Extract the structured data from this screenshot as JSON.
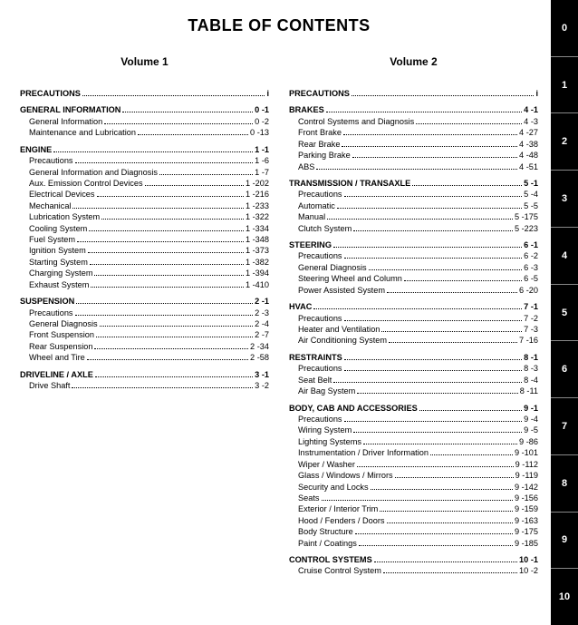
{
  "title": "TABLE OF CONTENTS",
  "vol1_label": "Volume 1",
  "vol2_label": "Volume 2",
  "side_tabs": [
    "0",
    "1",
    "2",
    "3",
    "4",
    "5",
    "6",
    "7",
    "8",
    "9",
    "10"
  ],
  "vol1": [
    {
      "head": {
        "label": "PRECAUTIONS",
        "page": "i"
      },
      "items": []
    },
    {
      "head": {
        "label": "GENERAL INFORMATION",
        "page": "0 -1"
      },
      "items": [
        {
          "label": "General Information",
          "page": "0 -2"
        },
        {
          "label": "Maintenance and Lubrication",
          "page": "0 -13"
        }
      ]
    },
    {
      "head": {
        "label": "ENGINE",
        "page": "1 -1"
      },
      "items": [
        {
          "label": "Precautions",
          "page": "1 -6"
        },
        {
          "label": "General Information and Diagnosis",
          "page": "1 -7"
        },
        {
          "label": "Aux. Emission Control Devices",
          "page": "1 -202"
        },
        {
          "label": "Electrical Devices",
          "page": "1 -216"
        },
        {
          "label": "Mechanical",
          "page": "1 -233"
        },
        {
          "label": "Lubrication System",
          "page": "1 -322"
        },
        {
          "label": "Cooling System",
          "page": "1 -334"
        },
        {
          "label": "Fuel System",
          "page": "1 -348"
        },
        {
          "label": "Ignition System",
          "page": "1 -373"
        },
        {
          "label": "Starting System",
          "page": "1 -382"
        },
        {
          "label": "Charging System",
          "page": "1 -394"
        },
        {
          "label": "Exhaust System",
          "page": "1 -410"
        }
      ]
    },
    {
      "head": {
        "label": "SUSPENSION",
        "page": "2 -1"
      },
      "items": [
        {
          "label": "Precautions",
          "page": "2 -3"
        },
        {
          "label": "General Diagnosis",
          "page": "2 -4"
        },
        {
          "label": "Front Suspension",
          "page": "2 -7"
        },
        {
          "label": "Rear Suspension",
          "page": "2 -34"
        },
        {
          "label": "Wheel and Tire",
          "page": "2 -58"
        }
      ]
    },
    {
      "head": {
        "label": "DRIVELINE / AXLE",
        "page": "3 -1"
      },
      "items": [
        {
          "label": "Drive Shaft",
          "page": "3 -2"
        }
      ]
    }
  ],
  "vol2": [
    {
      "head": {
        "label": "PRECAUTIONS",
        "page": "i"
      },
      "items": []
    },
    {
      "head": {
        "label": "BRAKES",
        "page": "4 -1"
      },
      "items": [
        {
          "label": "Control Systems and Diagnosis",
          "page": "4 -3"
        },
        {
          "label": "Front Brake",
          "page": "4 -27"
        },
        {
          "label": "Rear Brake",
          "page": "4 -38"
        },
        {
          "label": "Parking Brake",
          "page": "4 -48"
        },
        {
          "label": "ABS",
          "page": "4 -51"
        }
      ]
    },
    {
      "head": {
        "label": "TRANSMISSION / TRANSAXLE",
        "page": "5 -1"
      },
      "items": [
        {
          "label": "Precautions",
          "page": "5 -4"
        },
        {
          "label": "Automatic",
          "page": "5 -5"
        },
        {
          "label": "Manual",
          "page": "5 -175"
        },
        {
          "label": "Clutch System",
          "page": "5 -223"
        }
      ]
    },
    {
      "head": {
        "label": "STEERING",
        "page": "6 -1"
      },
      "items": [
        {
          "label": "Precautions",
          "page": "6 -2"
        },
        {
          "label": "General Diagnosis",
          "page": "6 -3"
        },
        {
          "label": "Steering Wheel and Column",
          "page": "6 -5"
        },
        {
          "label": "Power Assisted System",
          "page": "6 -20"
        }
      ]
    },
    {
      "head": {
        "label": "HVAC",
        "page": "7 -1"
      },
      "items": [
        {
          "label": "Precautions",
          "page": "7 -2"
        },
        {
          "label": "Heater and Ventilation",
          "page": "7 -3"
        },
        {
          "label": "Air Conditioning System",
          "page": "7 -16"
        }
      ]
    },
    {
      "head": {
        "label": "RESTRAINTS",
        "page": "8 -1"
      },
      "items": [
        {
          "label": "Precautions",
          "page": "8 -3"
        },
        {
          "label": "Seat Belt",
          "page": "8 -4"
        },
        {
          "label": "Air Bag System",
          "page": "8 -11"
        }
      ]
    },
    {
      "head": {
        "label": "BODY, CAB AND ACCESSORIES",
        "page": "9 -1"
      },
      "items": [
        {
          "label": "Precautions",
          "page": "9 -4"
        },
        {
          "label": "Wiring System",
          "page": "9 -5"
        },
        {
          "label": "Lighting Systems",
          "page": "9 -86"
        },
        {
          "label": "Instrumentation / Driver Information",
          "page": "9 -101"
        },
        {
          "label": "Wiper / Washer",
          "page": "9 -112"
        },
        {
          "label": "Glass / Windows / Mirrors",
          "page": "9 -119"
        },
        {
          "label": "Security and Locks",
          "page": "9 -142"
        },
        {
          "label": "Seats",
          "page": "9 -156"
        },
        {
          "label": "Exterior / Interior Trim",
          "page": "9 -159"
        },
        {
          "label": "Hood / Fenders / Doors",
          "page": "9 -163"
        },
        {
          "label": "Body Structure",
          "page": "9 -175"
        },
        {
          "label": "Paint / Coatings",
          "page": "9 -185"
        }
      ]
    },
    {
      "head": {
        "label": "CONTROL SYSTEMS",
        "page": "10 -1"
      },
      "items": [
        {
          "label": "Cruise Control System",
          "page": "10 -2"
        }
      ]
    }
  ]
}
